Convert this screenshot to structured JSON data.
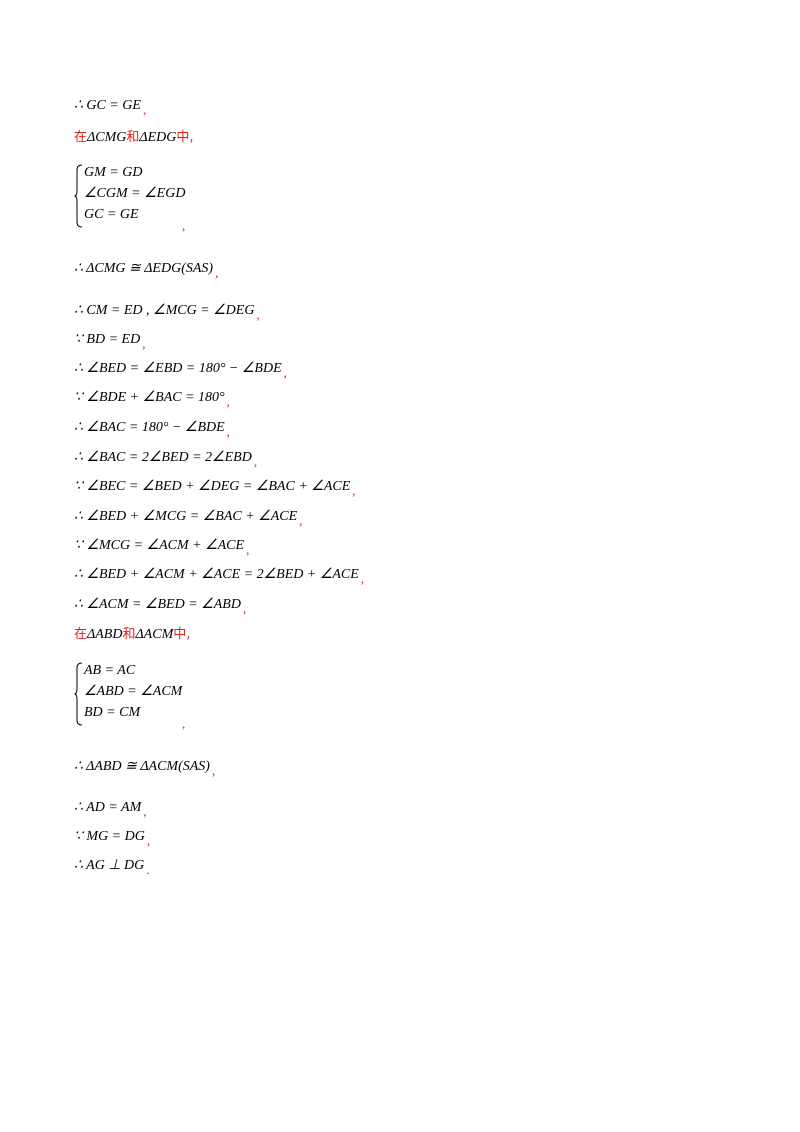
{
  "lines": [
    {
      "id": "l1",
      "text": "∴ GC = GE",
      "punct": ","
    },
    {
      "id": "l2",
      "prefix": "在",
      "a": "ΔCMG",
      "mid": "和",
      "b": "ΔEDG",
      "suffix": "中,"
    },
    {
      "id": "l4",
      "text": "∴ ΔCMG ≅ ΔEDG(SAS)",
      "punct": ","
    },
    {
      "id": "l5",
      "text": "∴ CM = ED ,   ∠MCG = ∠DEG",
      "punct": ","
    },
    {
      "id": "l6",
      "text": "∵ BD = ED",
      "punct": ","
    },
    {
      "id": "l7",
      "text": "∴ ∠BED = ∠EBD = 180° − ∠BDE",
      "punct": ","
    },
    {
      "id": "l8",
      "text": "∵ ∠BDE + ∠BAC = 180°",
      "punct": ","
    },
    {
      "id": "l9",
      "text": "∴ ∠BAC = 180° − ∠BDE",
      "punct": ","
    },
    {
      "id": "l10",
      "text": "∴ ∠BAC = 2∠BED = 2∠EBD",
      "punct": ","
    },
    {
      "id": "l11",
      "text": "∵ ∠BEC = ∠BED + ∠DEG = ∠BAC + ∠ACE",
      "punct": ","
    },
    {
      "id": "l12",
      "text": "∴ ∠BED + ∠MCG = ∠BAC + ∠ACE",
      "punct": ","
    },
    {
      "id": "l13",
      "text": "∵ ∠MCG = ∠ACM + ∠ACE",
      "punct": ","
    },
    {
      "id": "l14",
      "text": "∴ ∠BED + ∠ACM + ∠ACE = 2∠BED + ∠ACE",
      "punct": ","
    },
    {
      "id": "l15",
      "text": "∴ ∠ACM = ∠BED = ∠ABD",
      "punct": ","
    },
    {
      "id": "l16",
      "prefix": "在",
      "a": "ΔABD",
      "mid": "和",
      "b": "ΔACM",
      "suffix": "中,"
    },
    {
      "id": "l18",
      "text": "∴ ΔABD ≅ ΔACM(SAS)",
      "punct": ","
    },
    {
      "id": "l19",
      "text": "∴ AD = AM",
      "punct": ","
    },
    {
      "id": "l20",
      "text": "∵ MG = DG",
      "punct": ","
    },
    {
      "id": "l21",
      "text": "∴ AG ⊥ DG",
      "punct": "."
    }
  ],
  "system1": {
    "rows": [
      "GM = GD",
      "∠CGM = ∠EGD",
      "GC = GE"
    ],
    "punct": ","
  },
  "system2": {
    "rows": [
      "AB = AC",
      "∠ABD = ∠ACM",
      "BD = CM"
    ],
    "punct": ","
  },
  "colors": {
    "accent": "#e0201b",
    "text": "#000000"
  }
}
